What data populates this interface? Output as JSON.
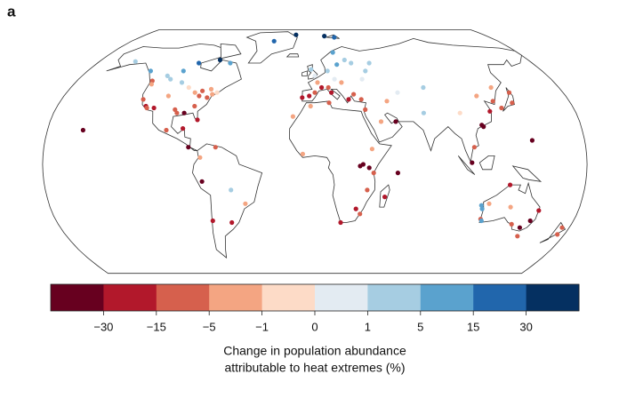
{
  "panel_label": "a",
  "colorbar": {
    "colors": [
      "#67001f",
      "#b2182b",
      "#d6604d",
      "#f4a582",
      "#fddbc7",
      "#e3ebf2",
      "#a6cde2",
      "#5aa2ce",
      "#2166ac",
      "#053061"
    ],
    "ticks": [
      {
        "value": -30,
        "label": "−30"
      },
      {
        "value": -15,
        "label": "−15"
      },
      {
        "value": -5,
        "label": "−5"
      },
      {
        "value": -1,
        "label": "−1"
      },
      0,
      1,
      5,
      15,
      30
    ],
    "label": [
      "Change in population abundance",
      "attributable to heat extremes (%)"
    ]
  },
  "points": [
    {
      "lon": -123,
      "lat": 49,
      "value": -8
    },
    {
      "lon": -122,
      "lat": 47,
      "value": -3
    },
    {
      "lon": -118,
      "lat": 34,
      "value": -20
    },
    {
      "lon": -117,
      "lat": 33,
      "value": -10
    },
    {
      "lon": -122,
      "lat": 38,
      "value": -12
    },
    {
      "lon": -112,
      "lat": 33,
      "value": -25
    },
    {
      "lon": -105,
      "lat": 40,
      "value": -3
    },
    {
      "lon": -97,
      "lat": 32,
      "value": -8
    },
    {
      "lon": -95,
      "lat": 30,
      "value": -12
    },
    {
      "lon": -90,
      "lat": 30,
      "value": -35
    },
    {
      "lon": -84,
      "lat": 34,
      "value": -10
    },
    {
      "lon": -80,
      "lat": 26,
      "value": -20
    },
    {
      "lon": -77,
      "lat": 39,
      "value": -8
    },
    {
      "lon": -74,
      "lat": 41,
      "value": -3
    },
    {
      "lon": -71,
      "lat": 42,
      "value": -0.5
    },
    {
      "lon": -87,
      "lat": 42,
      "value": -2
    },
    {
      "lon": -93,
      "lat": 45,
      "value": -0.5
    },
    {
      "lon": -100,
      "lat": 48,
      "value": 2
    },
    {
      "lon": -110,
      "lat": 50,
      "value": 3
    },
    {
      "lon": -114,
      "lat": 52,
      "value": 4
    },
    {
      "lon": -104,
      "lat": 55,
      "value": 8
    },
    {
      "lon": -96,
      "lat": 60,
      "value": 20
    },
    {
      "lon": -80,
      "lat": 62,
      "value": 35
    },
    {
      "lon": -70,
      "lat": 60,
      "value": 10
    },
    {
      "lon": -130,
      "lat": 55,
      "value": 6
    },
    {
      "lon": -150,
      "lat": 61,
      "value": 2
    },
    {
      "lon": -76,
      "lat": 44,
      "value": -4
    },
    {
      "lon": -82,
      "lat": 43,
      "value": -8
    },
    {
      "lon": -83,
      "lat": 40,
      "value": -12
    },
    {
      "lon": -40,
      "lat": 75,
      "value": 20
    },
    {
      "lon": -20,
      "lat": 80,
      "value": 40
    },
    {
      "lon": 10,
      "lat": 79,
      "value": 40
    },
    {
      "lon": 20,
      "lat": 78,
      "value": 25
    },
    {
      "lon": -100,
      "lat": 20,
      "value": -15
    },
    {
      "lon": -89,
      "lat": 21,
      "value": -20
    },
    {
      "lon": -84,
      "lat": 10,
      "value": -40
    },
    {
      "lon": -75,
      "lat": -10,
      "value": -40
    },
    {
      "lon": -66,
      "lat": 10,
      "value": -8
    },
    {
      "lon": -76,
      "lat": 4,
      "value": -3
    },
    {
      "lon": -156,
      "lat": 20,
      "value": -40
    },
    {
      "lon": -47,
      "lat": -23,
      "value": -3
    },
    {
      "lon": -58,
      "lat": -34,
      "value": -25
    },
    {
      "lon": -56,
      "lat": -15,
      "value": 3
    },
    {
      "lon": -71,
      "lat": -33,
      "value": -20
    },
    {
      "lon": -9,
      "lat": 39,
      "value": -25
    },
    {
      "lon": -4,
      "lat": 40,
      "value": -20
    },
    {
      "lon": 0,
      "lat": 42,
      "value": -15
    },
    {
      "lon": 2,
      "lat": 48,
      "value": -2
    },
    {
      "lon": 5,
      "lat": 45,
      "value": -20
    },
    {
      "lon": 10,
      "lat": 45,
      "value": -15
    },
    {
      "lon": 12,
      "lat": 42,
      "value": -25
    },
    {
      "lon": 15,
      "lat": 50,
      "value": 0.5
    },
    {
      "lon": 10,
      "lat": 55,
      "value": 2
    },
    {
      "lon": 18,
      "lat": 59,
      "value": 5
    },
    {
      "lon": 25,
      "lat": 62,
      "value": 3
    },
    {
      "lon": 30,
      "lat": 60,
      "value": 4
    },
    {
      "lon": 0,
      "lat": 52,
      "value": 0.5
    },
    {
      "lon": -3,
      "lat": 56,
      "value": 2
    },
    {
      "lon": 24,
      "lat": 38,
      "value": -20
    },
    {
      "lon": 28,
      "lat": 41,
      "value": -15
    },
    {
      "lon": 33,
      "lat": 38,
      "value": -10
    },
    {
      "lon": 20,
      "lat": 48,
      "value": -3
    },
    {
      "lon": 36,
      "lat": 50,
      "value": 0.5
    },
    {
      "lon": 40,
      "lat": 55,
      "value": 3
    },
    {
      "lon": 45,
      "lat": 60,
      "value": 2
    },
    {
      "lon": 16,
      "lat": 67,
      "value": 8
    },
    {
      "lon": 35,
      "lat": 32,
      "value": -10
    },
    {
      "lon": 45,
      "lat": 25,
      "value": -3
    },
    {
      "lon": 55,
      "lat": 25,
      "value": -40
    },
    {
      "lon": 51,
      "lat": 37,
      "value": -3
    },
    {
      "lon": 60,
      "lat": 42,
      "value": 0.5
    },
    {
      "lon": 80,
      "lat": 45,
      "value": 3
    },
    {
      "lon": 75,
      "lat": 30,
      "value": 2
    },
    {
      "lon": 100,
      "lat": 30,
      "value": -1
    },
    {
      "lon": 116,
      "lat": 40,
      "value": -5
    },
    {
      "lon": 121,
      "lat": 31,
      "value": -20
    },
    {
      "lon": 114,
      "lat": 22,
      "value": -35
    },
    {
      "lon": 113,
      "lat": 23,
      "value": -40
    },
    {
      "lon": 106,
      "lat": 10,
      "value": -15
    },
    {
      "lon": 104,
      "lat": 1,
      "value": -35
    },
    {
      "lon": 126,
      "lat": 37,
      "value": -10
    },
    {
      "lon": 130,
      "lat": 33,
      "value": -15
    },
    {
      "lon": 139,
      "lat": 36,
      "value": -15
    },
    {
      "lon": 141,
      "lat": 42,
      "value": -10
    },
    {
      "lon": 145,
      "lat": 14,
      "value": -40
    },
    {
      "lon": 130,
      "lat": 45,
      "value": -5
    },
    {
      "lon": 30,
      "lat": -1,
      "value": -35
    },
    {
      "lon": 32,
      "lat": 0,
      "value": -40
    },
    {
      "lon": 36,
      "lat": -2,
      "value": -40
    },
    {
      "lon": 39,
      "lat": -5,
      "value": -10
    },
    {
      "lon": 55,
      "lat": -5,
      "value": -40
    },
    {
      "lon": 18,
      "lat": -34,
      "value": -20
    },
    {
      "lon": 28,
      "lat": -26,
      "value": -25
    },
    {
      "lon": 31,
      "lat": -29,
      "value": -15
    },
    {
      "lon": 47,
      "lat": -19,
      "value": -20
    },
    {
      "lon": -15,
      "lat": 28,
      "value": -3
    },
    {
      "lon": -3,
      "lat": 34,
      "value": -5
    },
    {
      "lon": 10,
      "lat": 36,
      "value": -10
    },
    {
      "lon": 38,
      "lat": 9,
      "value": -3
    },
    {
      "lon": 35,
      "lat": -15,
      "value": -8
    },
    {
      "lon": -8,
      "lat": 6,
      "value": -3
    },
    {
      "lon": 150,
      "lat": -33,
      "value": -35
    },
    {
      "lon": 145,
      "lat": -37,
      "value": -40
    },
    {
      "lon": 153,
      "lat": -27,
      "value": -25
    },
    {
      "lon": 138,
      "lat": -35,
      "value": -15
    },
    {
      "lon": 115,
      "lat": -32,
      "value": -12
    },
    {
      "lon": 130,
      "lat": -12,
      "value": -20
    },
    {
      "lon": 147,
      "lat": -42,
      "value": -8
    },
    {
      "lon": 118,
      "lat": -23,
      "value": -5
    },
    {
      "lon": 114,
      "lat": -26,
      "value": 5
    },
    {
      "lon": 113,
      "lat": -24,
      "value": 10
    },
    {
      "lon": 116,
      "lat": -33,
      "value": 8
    },
    {
      "lon": 133,
      "lat": -25,
      "value": -3
    },
    {
      "lon": 175,
      "lat": -41,
      "value": -10
    },
    {
      "lon": 175,
      "lat": -37,
      "value": -15
    }
  ]
}
